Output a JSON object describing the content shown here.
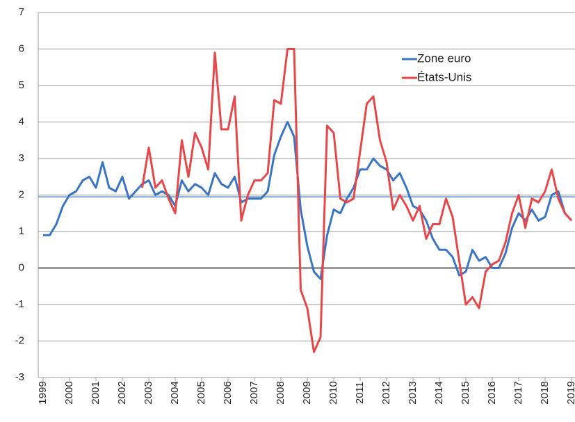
{
  "chart_data": {
    "type": "line",
    "categories": [
      "1999",
      null,
      null,
      null,
      "2000",
      null,
      null,
      null,
      "2001",
      null,
      null,
      null,
      "2002",
      null,
      null,
      null,
      "2003",
      null,
      null,
      null,
      "2004",
      null,
      null,
      null,
      "2005",
      null,
      null,
      null,
      "2006",
      null,
      null,
      null,
      "2007",
      null,
      null,
      null,
      "2008",
      null,
      null,
      null,
      "2009",
      null,
      null,
      null,
      "2010",
      null,
      null,
      null,
      "2011",
      null,
      null,
      null,
      "2012",
      null,
      null,
      null,
      "2013",
      null,
      null,
      null,
      "2014",
      null,
      null,
      null,
      "2015",
      null,
      null,
      null,
      "2016",
      null,
      null,
      null,
      "2017",
      null,
      null,
      null,
      "2018",
      null,
      null,
      null,
      "2019"
    ],
    "series": [
      {
        "name": "Zone euro",
        "color": "#3a75c4",
        "values": [
          0.9,
          0.9,
          1.2,
          1.7,
          2.0,
          2.1,
          2.4,
          2.5,
          2.2,
          2.9,
          2.2,
          2.1,
          2.5,
          1.9,
          2.1,
          2.3,
          2.4,
          2.0,
          2.1,
          2.0,
          1.7,
          2.4,
          2.1,
          2.3,
          2.2,
          2.0,
          2.6,
          2.3,
          2.2,
          2.5,
          1.8,
          1.9,
          1.9,
          1.9,
          2.1,
          3.1,
          3.6,
          4.0,
          3.6,
          1.6,
          0.6,
          -0.1,
          -0.3,
          0.9,
          1.6,
          1.5,
          1.9,
          2.2,
          2.7,
          2.7,
          3.0,
          2.8,
          2.7,
          2.4,
          2.6,
          2.2,
          1.7,
          1.6,
          1.3,
          0.8,
          0.5,
          0.5,
          0.3,
          -0.2,
          -0.1,
          0.5,
          0.2,
          0.3,
          0.0,
          0.0,
          0.4,
          1.1,
          1.5,
          1.3,
          1.6,
          1.3,
          1.4,
          2.0,
          2.1,
          1.5,
          1.3
        ]
      },
      {
        "name": "États-Unis",
        "color": "#e8474a",
        "values": [
          null,
          null,
          null,
          null,
          null,
          null,
          null,
          null,
          null,
          null,
          null,
          null,
          null,
          null,
          null,
          2.2,
          3.3,
          2.2,
          2.4,
          1.9,
          1.5,
          3.5,
          2.5,
          3.7,
          3.3,
          2.7,
          5.9,
          3.8,
          3.8,
          4.7,
          1.3,
          2.0,
          2.4,
          2.4,
          2.6,
          4.6,
          4.5,
          6.0,
          6.0,
          -0.6,
          -1.1,
          -2.3,
          -1.9,
          3.9,
          3.7,
          1.9,
          1.8,
          1.9,
          3.2,
          4.5,
          4.7,
          3.5,
          2.9,
          1.6,
          2.0,
          1.7,
          1.3,
          1.7,
          0.8,
          1.2,
          1.2,
          1.9,
          1.4,
          0.2,
          -1.0,
          -0.8,
          -1.1,
          -0.1,
          0.1,
          0.2,
          0.7,
          1.5,
          2.0,
          1.1,
          1.9,
          1.8,
          2.1,
          2.7,
          1.9,
          1.5,
          1.3
        ]
      }
    ],
    "ylim": [
      -3,
      7
    ],
    "yticks": [
      -3,
      -2,
      -1,
      0,
      1,
      2,
      3,
      4,
      5,
      6,
      7
    ],
    "grid": true,
    "reference_line": {
      "value": 1.95,
      "color": "#3a75c4"
    },
    "legend": "upper right"
  }
}
